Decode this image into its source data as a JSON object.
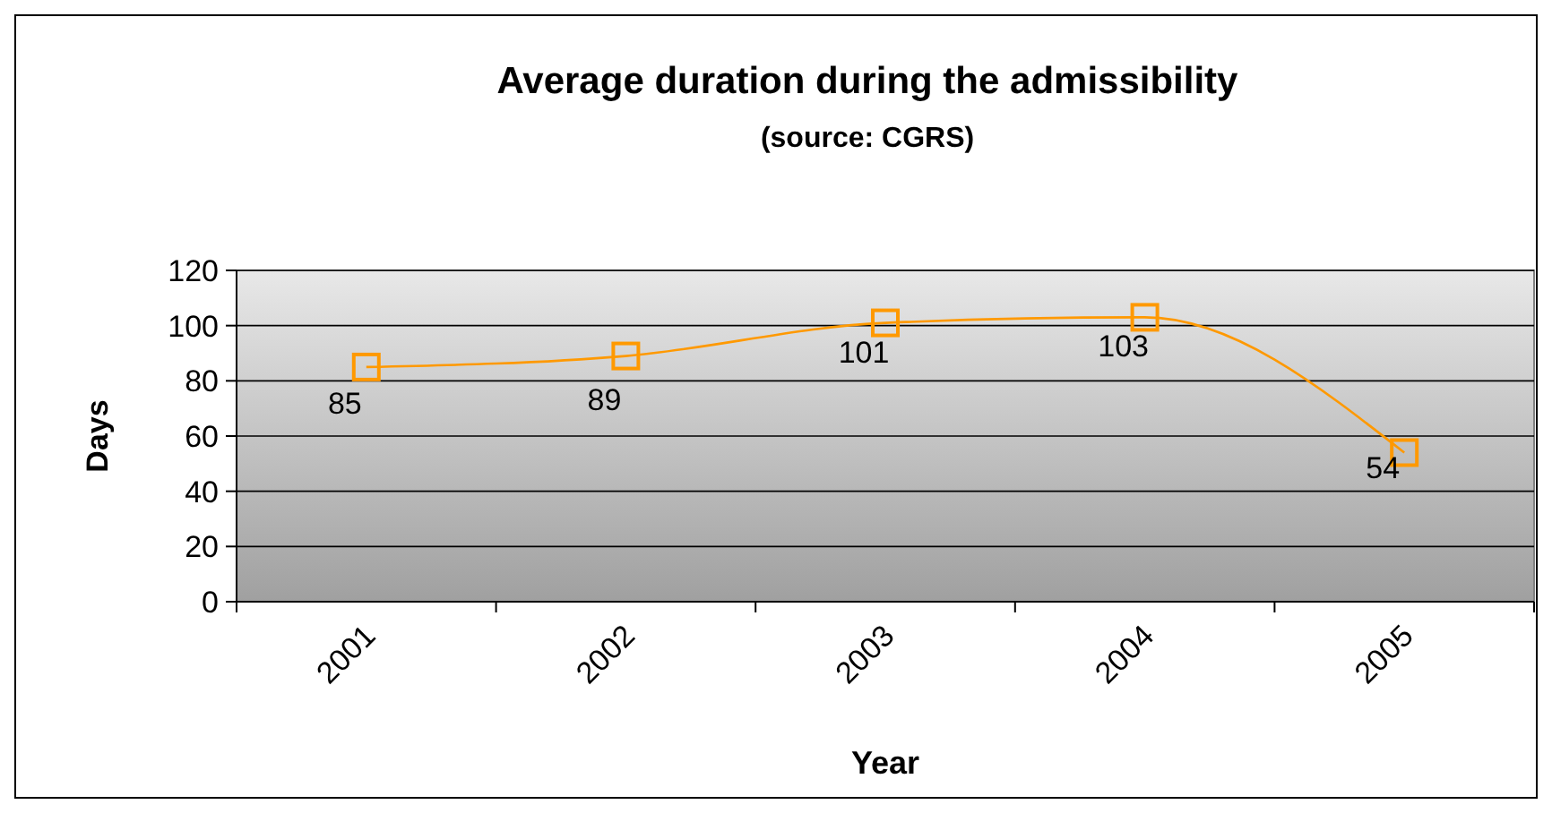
{
  "chart_data": {
    "type": "line",
    "title": "Average duration during the admissibility",
    "subtitle": "(source: CGRS)",
    "xlabel": "Year",
    "ylabel": "Days",
    "categories": [
      "2001",
      "2002",
      "2003",
      "2004",
      "2005"
    ],
    "series": [
      {
        "color": "#ff9900",
        "values": [
          85,
          89,
          101,
          103,
          54
        ]
      }
    ],
    "ylim": [
      0,
      120
    ],
    "yticks": [
      0,
      20,
      40,
      60,
      80,
      100,
      120
    ],
    "grid": "y",
    "marker": "square",
    "line_style": "solid",
    "data_labels": true
  }
}
